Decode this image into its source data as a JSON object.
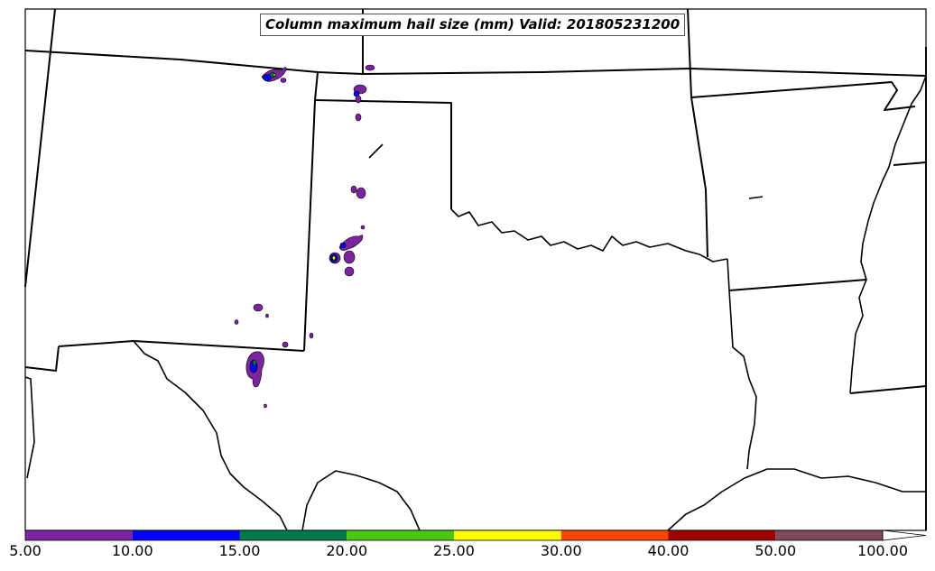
{
  "title": "Column maximum hail size (mm) Valid: 201805231200",
  "colorbar": {
    "ticks": [
      "5.00",
      "10.00",
      "15.00",
      "20.00",
      "25.00",
      "30.00",
      "40.00",
      "50.00",
      "100.00"
    ],
    "bins": [
      {
        "from": 5,
        "to": 10,
        "color": "#7b24a0"
      },
      {
        "from": 10,
        "to": 15,
        "color": "#0000ff"
      },
      {
        "from": 15,
        "to": 20,
        "color": "#007a4c"
      },
      {
        "from": 20,
        "to": 25,
        "color": "#4cc814"
      },
      {
        "from": 25,
        "to": 30,
        "color": "#ffff00"
      },
      {
        "from": 30,
        "to": 40,
        "color": "#ff4600"
      },
      {
        "from": 40,
        "to": 50,
        "color": "#a00000"
      },
      {
        "from": 50,
        "to": 100,
        "color": "#7f4a5a"
      }
    ],
    "extend": "max"
  }
}
